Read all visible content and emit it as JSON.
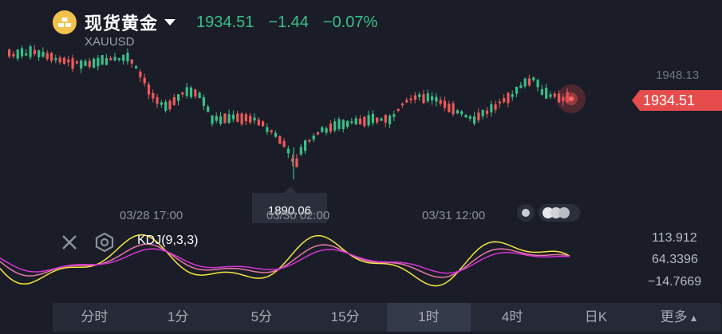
{
  "header": {
    "title": "现货黄金",
    "symbol": "XAUUSD",
    "price": "1934.51",
    "change": "−1.44",
    "change_pct": "−0.07%"
  },
  "price_axis": {
    "high": "1948.13",
    "current": "1934.51",
    "low_marker": "1890.06"
  },
  "time_axis": [
    "03/28 17:00",
    "03/30 02:00",
    "03/31 12:00"
  ],
  "indicator": {
    "label": "KDJ(9,3,3)",
    "levels": [
      "113.912",
      "64.3396",
      "−14.7669"
    ]
  },
  "tabs": [
    "分时",
    "1分",
    "5分",
    "15分",
    "1时",
    "4时",
    "日K",
    "更多"
  ],
  "active_tab": "1时",
  "colors": {
    "up": "#ef5a5a",
    "down": "#3bbf8a",
    "k_line": "#f5e642",
    "d_line": "#e879a6",
    "j_line": "#d633d6",
    "price_tag": "#e74c4c"
  }
}
